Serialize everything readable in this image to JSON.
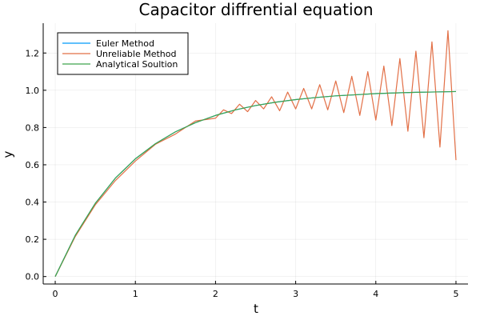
{
  "chart_data": {
    "type": "line",
    "title": "Capacitor diffrential equation",
    "xlabel": "t",
    "ylabel": "y",
    "xlim": [
      -0.15,
      5.15
    ],
    "ylim": [
      -0.04,
      1.36
    ],
    "xticks": [
      0,
      1,
      2,
      3,
      4,
      5
    ],
    "yticks": [
      0.0,
      0.2,
      0.4,
      0.6,
      0.8,
      1.0,
      1.2
    ],
    "xtick_labels": [
      "0",
      "1",
      "2",
      "3",
      "4",
      "5"
    ],
    "ytick_labels": [
      "0.0",
      "0.2",
      "0.4",
      "0.6",
      "0.8",
      "1.0",
      "1.2"
    ],
    "grid": true,
    "legend_position": "top-left",
    "series": [
      {
        "name": "Euler Method",
        "color": "#009af9",
        "x": [
          0,
          0.25,
          0.5,
          0.75,
          1.0,
          1.25,
          1.5,
          1.75,
          2.0,
          2.25,
          2.5,
          2.75,
          3.0,
          3.25,
          3.5,
          3.75,
          4.0,
          4.25,
          4.5,
          4.75,
          5.0
        ],
        "y": [
          0.0,
          0.221,
          0.393,
          0.528,
          0.632,
          0.713,
          0.777,
          0.826,
          0.865,
          0.895,
          0.918,
          0.936,
          0.95,
          0.961,
          0.97,
          0.976,
          0.982,
          0.986,
          0.989,
          0.991,
          0.993
        ]
      },
      {
        "name": "Unreliable Method",
        "color": "#e26f46",
        "x": [
          0,
          0.25,
          0.5,
          0.75,
          1.0,
          1.25,
          1.5,
          1.75,
          2.0,
          2.1,
          2.2,
          2.3,
          2.4,
          2.5,
          2.6,
          2.7,
          2.8,
          2.9,
          3.0,
          3.1,
          3.2,
          3.3,
          3.4,
          3.5,
          3.6,
          3.7,
          3.8,
          3.9,
          4.0,
          4.1,
          4.2,
          4.3,
          4.4,
          4.5,
          4.6,
          4.7,
          4.8,
          4.9,
          5.0
        ],
        "y": [
          0.0,
          0.215,
          0.385,
          0.515,
          0.62,
          0.71,
          0.765,
          0.835,
          0.85,
          0.895,
          0.875,
          0.925,
          0.885,
          0.945,
          0.9,
          0.965,
          0.89,
          0.99,
          0.9,
          1.01,
          0.9,
          1.03,
          0.895,
          1.05,
          0.88,
          1.075,
          0.865,
          1.1,
          0.84,
          1.13,
          0.81,
          1.17,
          0.78,
          1.21,
          0.745,
          1.26,
          0.695,
          1.32,
          0.625
        ]
      },
      {
        "name": "Analytical Soultion",
        "color": "#3da44d",
        "x": [
          0,
          0.25,
          0.5,
          0.75,
          1.0,
          1.25,
          1.5,
          1.75,
          2.0,
          2.25,
          2.5,
          2.75,
          3.0,
          3.25,
          3.5,
          3.75,
          4.0,
          4.25,
          4.5,
          4.75,
          5.0
        ],
        "y": [
          0.0,
          0.221,
          0.393,
          0.528,
          0.632,
          0.713,
          0.777,
          0.826,
          0.865,
          0.895,
          0.918,
          0.936,
          0.95,
          0.961,
          0.97,
          0.976,
          0.982,
          0.986,
          0.989,
          0.991,
          0.993
        ]
      }
    ]
  }
}
